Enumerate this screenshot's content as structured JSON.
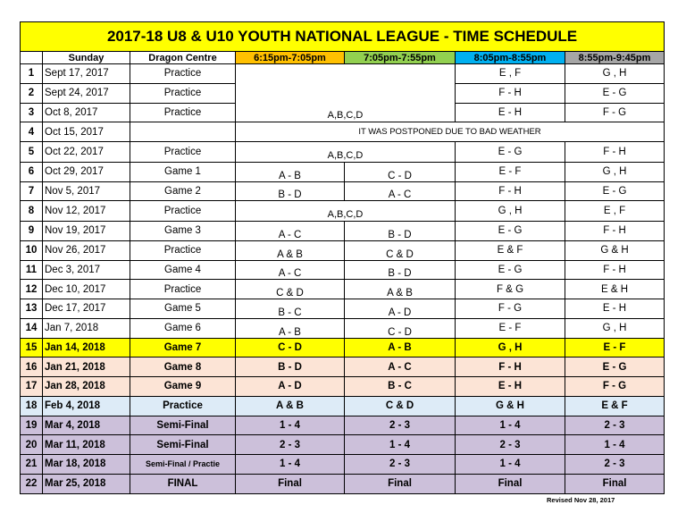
{
  "title": "2017-18 U8 & U10 YOUTH NATIONAL LEAGUE - TIME SCHEDULE",
  "headers": [
    "",
    "Sunday",
    "Dragon Centre",
    "6:15pm-7:05pm",
    "7:05pm-7:55pm",
    "8:05pm-8:55pm",
    "8:55pm-9:45pm"
  ],
  "header_colors": [
    "#ffffff",
    "#ffffff",
    "#ffffff",
    "#ffc000",
    "#92d050",
    "#00b0f0",
    "#a6a6a6"
  ],
  "rows": [
    {
      "num": "1",
      "date": "Sept 17, 2017",
      "dc": "Practice",
      "c1": "",
      "c2": "",
      "c3": "E , F",
      "c4": "G , H",
      "color": "#ffffff",
      "bold": false
    },
    {
      "num": "2",
      "date": "Sept 24, 2017",
      "dc": "Practice",
      "c1": "",
      "c2": "",
      "c3": "F - H",
      "c4": "E - G",
      "color": "#ffffff",
      "bold": false
    },
    {
      "num": "3",
      "date": "Oct 8, 2017",
      "dc": "Practice",
      "c1": "",
      "c2": "",
      "c3": "E - H",
      "c4": "F - G",
      "color": "#ffffff",
      "bold": false
    },
    {
      "num": "4",
      "date": "Oct 15, 2017",
      "dc": "",
      "c1": "",
      "c2": "",
      "c3": "",
      "c4": "",
      "color": "#ffffff",
      "bold": false
    },
    {
      "num": "5",
      "date": "Oct 22, 2017",
      "dc": "Practice",
      "c1": "",
      "c2": "",
      "c3": "E - G",
      "c4": "F - H",
      "color": "#ffffff",
      "bold": false
    },
    {
      "num": "6",
      "date": "Oct 29, 2017",
      "dc": "Game 1",
      "c1": "A - B",
      "c2": "C - D",
      "c3": "E - F",
      "c4": "G , H",
      "color": "#ffffff",
      "bold": false
    },
    {
      "num": "7",
      "date": "Nov 5, 2017",
      "dc": "Game 2",
      "c1": "B - D",
      "c2": "A - C",
      "c3": "F - H",
      "c4": "E - G",
      "color": "#ffffff",
      "bold": false
    },
    {
      "num": "8",
      "date": "Nov 12, 2017",
      "dc": "Practice",
      "c1": "",
      "c2": "",
      "c3": "G , H",
      "c4": "E , F",
      "color": "#ffffff",
      "bold": false
    },
    {
      "num": "9",
      "date": "Nov 19, 2017",
      "dc": "Game 3",
      "c1": "A - C",
      "c2": "B - D",
      "c3": "E - G",
      "c4": "F - H",
      "color": "#ffffff",
      "bold": false
    },
    {
      "num": "10",
      "date": "Nov 26, 2017",
      "dc": "Practice",
      "c1": "A & B",
      "c2": "C & D",
      "c3": "E & F",
      "c4": "G & H",
      "color": "#ffffff",
      "bold": false
    },
    {
      "num": "11",
      "date": "Dec 3, 2017",
      "dc": "Game 4",
      "c1": "A - C",
      "c2": "B - D",
      "c3": "E - G",
      "c4": "F - H",
      "color": "#ffffff",
      "bold": false
    },
    {
      "num": "12",
      "date": "Dec 10, 2017",
      "dc": "Practice",
      "c1": "C & D",
      "c2": "A & B",
      "c3": "F & G",
      "c4": "E & H",
      "color": "#ffffff",
      "bold": false
    },
    {
      "num": "13",
      "date": "Dec 17, 2017",
      "dc": "Game 5",
      "c1": "B - C",
      "c2": "A - D",
      "c3": "F - G",
      "c4": "E - H",
      "color": "#ffffff",
      "bold": false
    },
    {
      "num": "14",
      "date": "Jan 7, 2018",
      "dc": "Game 6",
      "c1": "A - B",
      "c2": "C - D",
      "c3": "E - F",
      "c4": "G , H",
      "color": "#ffffff",
      "bold": false
    },
    {
      "num": "15",
      "date": "Jan 14, 2018",
      "dc": "Game 7",
      "c1": "C - D",
      "c2": "A - B",
      "c3": "G , H",
      "c4": "E - F",
      "color": "#ffff00",
      "bold": true
    },
    {
      "num": "16",
      "date": "Jan 21, 2018",
      "dc": "Game 8",
      "c1": "B - D",
      "c2": "A - C",
      "c3": "F - H",
      "c4": "E - G",
      "color": "#fce4d6",
      "bold": true
    },
    {
      "num": "17",
      "date": "Jan 28, 2018",
      "dc": "Game 9",
      "c1": "A - D",
      "c2": "B - C",
      "c3": "E - H",
      "c4": "F - G",
      "color": "#fce4d6",
      "bold": true
    },
    {
      "num": "18",
      "date": "Feb 4, 2018",
      "dc": "Practice",
      "c1": "A & B",
      "c2": "C & D",
      "c3": "G & H",
      "c4": "E & F",
      "color": "#ddebf7",
      "bold": true
    },
    {
      "num": "19",
      "date": "Mar 4, 2018",
      "dc": "Semi-Final",
      "c1": "1 - 4",
      "c2": "2 - 3",
      "c3": "1 - 4",
      "c4": "2 - 3",
      "color": "#ccc0da",
      "bold": true
    },
    {
      "num": "20",
      "date": "Mar 11, 2018",
      "dc": "Semi-Final",
      "c1": "2 - 3",
      "c2": "1 - 4",
      "c3": "2 - 3",
      "c4": "1 - 4",
      "color": "#ccc0da",
      "bold": true
    },
    {
      "num": "21",
      "date": "Mar 18, 2018",
      "dc": "Semi-Final / Practie",
      "c1": "1 - 4",
      "c2": "2 - 3",
      "c3": "1 - 4",
      "c4": "2 - 3",
      "color": "#ccc0da",
      "bold": true
    },
    {
      "num": "22",
      "date": "Mar 25, 2018",
      "dc": "FINAL",
      "c1": "Final",
      "c2": "Final",
      "c3": "Final",
      "c4": "Final",
      "color": "#ccc0da",
      "bold": true
    }
  ],
  "merged": {
    "abcd": "A,B,C,D",
    "postponed": "IT WAS POSTPONED DUE TO BAD WEATHER"
  },
  "footer": "Revised Nov 28, 2017"
}
